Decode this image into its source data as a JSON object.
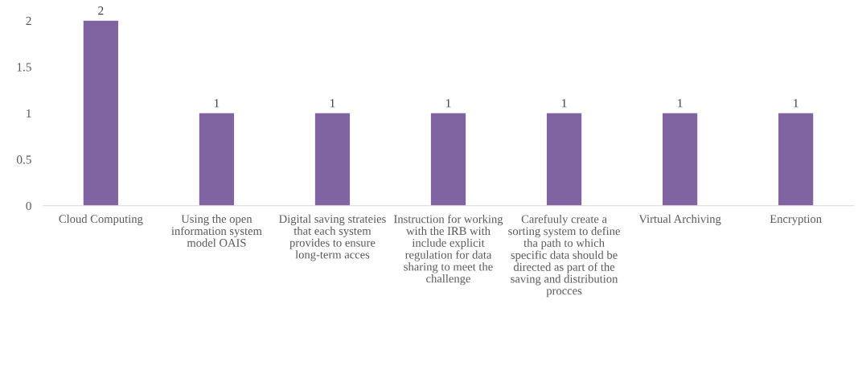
{
  "chart_data": {
    "type": "bar",
    "categories": [
      "Cloud Computing",
      "Using the open information system model OAIS",
      "Digital saving strateies that each system provides to ensure long-term acces",
      "Instruction for working with the IRB with include explicit regulation for data sharing to meet the challenge",
      "Carefuuly create a sorting system to define tha path to which specific data should be directed as part of the saving and distribution procces",
      "Virtual Archiving",
      "Encryption"
    ],
    "values": [
      2,
      1,
      1,
      1,
      1,
      1,
      1
    ],
    "color": "#8064a2",
    "ylim": [
      0,
      2
    ],
    "yticks": [
      0,
      0.5,
      1,
      1.5,
      2
    ],
    "grid": false,
    "data_labels": true
  }
}
